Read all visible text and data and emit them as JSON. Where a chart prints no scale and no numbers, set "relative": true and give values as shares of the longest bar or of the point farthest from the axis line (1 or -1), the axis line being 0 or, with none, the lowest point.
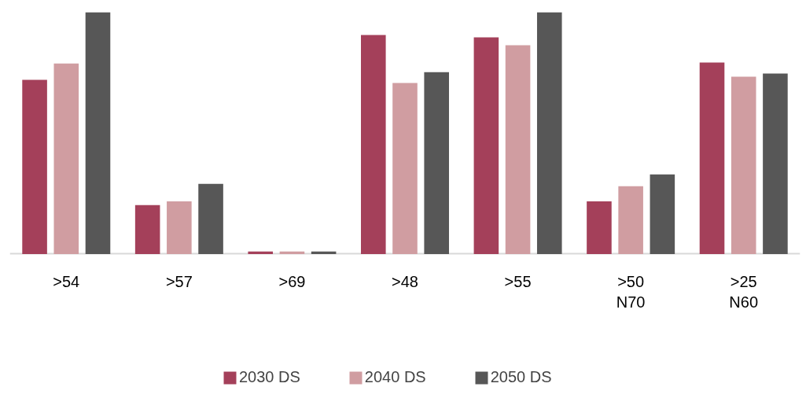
{
  "chart_data": {
    "type": "bar",
    "relative": true,
    "categories": [
      ">54",
      ">57",
      ">69",
      ">48",
      ">55",
      ">50\nN70",
      ">25\nN60"
    ],
    "series": [
      {
        "name": "2030 DS",
        "color": "#a4405a",
        "values": [
          0.72,
          0.202,
          0.01,
          0.906,
          0.896,
          0.218,
          0.792
        ]
      },
      {
        "name": "2040 DS",
        "color": "#d09da1",
        "values": [
          0.788,
          0.218,
          0.01,
          0.707,
          0.863,
          0.28,
          0.733
        ]
      },
      {
        "name": "2050 DS",
        "color": "#575757",
        "values": [
          1,
          0.29,
          0.01,
          0.752,
          1,
          0.329,
          0.746
        ]
      }
    ],
    "legend": "bottom"
  }
}
